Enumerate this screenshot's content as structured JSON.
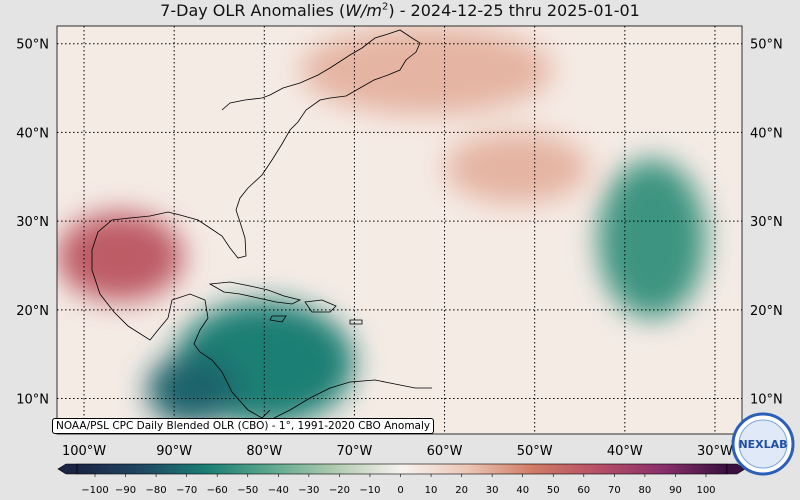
{
  "title": {
    "prefix": "7-Day OLR Anomalies (",
    "unit_base": "W/m",
    "unit_exp": "2",
    "suffix": ") - 2024-12-25 thru 2025-01-01"
  },
  "map": {
    "lon_range": [
      -103,
      -27
    ],
    "lat_range": [
      6,
      52
    ],
    "lat_labels": [
      {
        "lat": 50,
        "text": "50°N"
      },
      {
        "lat": 40,
        "text": "40°N"
      },
      {
        "lat": 30,
        "text": "30°N"
      },
      {
        "lat": 20,
        "text": "20°N"
      },
      {
        "lat": 10,
        "text": "10°N"
      }
    ],
    "lon_labels": [
      {
        "lon": -100,
        "text": "100°W"
      },
      {
        "lon": -90,
        "text": "90°W"
      },
      {
        "lon": -80,
        "text": "80°W"
      },
      {
        "lon": -70,
        "text": "70°W"
      },
      {
        "lon": -60,
        "text": "60°W"
      },
      {
        "lon": -50,
        "text": "50°W"
      },
      {
        "lon": -40,
        "text": "40°W"
      },
      {
        "lon": -30,
        "text": "30°W"
      }
    ]
  },
  "anomaly_regions": [
    {
      "name": "western-atlantic-positive",
      "lon": -62,
      "lat": 47,
      "rx_deg": 14,
      "ry_deg": 5,
      "value": 25
    },
    {
      "name": "gulf-of-mexico-positive",
      "lon": -96,
      "lat": 26,
      "rx_deg": 7,
      "ry_deg": 5,
      "value": 55
    },
    {
      "name": "central-atlantic-positive",
      "lon": -52,
      "lat": 36,
      "rx_deg": 8,
      "ry_deg": 4,
      "value": 25
    },
    {
      "name": "caribbean-negative",
      "lon": -80,
      "lat": 14,
      "rx_deg": 10,
      "ry_deg": 7,
      "value": -60
    },
    {
      "name": "central-america-negative",
      "lon": -88,
      "lat": 11,
      "rx_deg": 5,
      "ry_deg": 4,
      "value": -70
    },
    {
      "name": "east-atlantic-negative",
      "lon": -37,
      "lat": 28,
      "rx_deg": 6,
      "ry_deg": 9,
      "value": -50
    }
  ],
  "colorbar": {
    "min": -100,
    "max": 100,
    "tick_labels": [
      "−100",
      "−90",
      "−80",
      "−70",
      "−60",
      "−50",
      "−40",
      "−30",
      "−20",
      "−10",
      "0",
      "10",
      "20",
      "30",
      "40",
      "50",
      "60",
      "70",
      "80",
      "90",
      "100"
    ]
  },
  "attribution": "NOAA/PSL CPC Daily Blended OLR (CBO) - 1°, 1991-2020 CBO Anomaly",
  "logo_text": "NEXLAB",
  "colors": {
    "negative_deep": "#1c2a4a",
    "negative_mid": "#1a7f74",
    "negative_light": "#b3ccb1",
    "neutral": "#f7f2ef",
    "positive_light": "#ecc6b6",
    "positive_mid": "#d17c66",
    "positive_deep": "#6c1f5a"
  }
}
